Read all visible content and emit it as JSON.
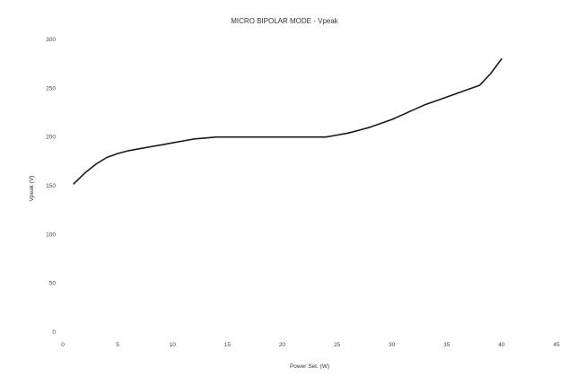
{
  "chart_data": {
    "type": "line",
    "title": "MICRO BIPOLAR MODE - Vpeak",
    "xlabel": "Power Set. (W)",
    "ylabel": "Vpeak (V)",
    "xlim": [
      0,
      45
    ],
    "ylim": [
      0,
      300
    ],
    "xticks": [
      0,
      5,
      10,
      15,
      20,
      25,
      30,
      35,
      40,
      45
    ],
    "yticks": [
      0,
      50,
      100,
      150,
      200,
      250,
      300
    ],
    "grid": false,
    "legend": "none",
    "series": [
      {
        "color": "#1a1a1a",
        "x": [
          1,
          2,
          3,
          4,
          5,
          6,
          7,
          8,
          9,
          10,
          11,
          12,
          13,
          14,
          15,
          16,
          17,
          18,
          19,
          20,
          21,
          22,
          23,
          24,
          25,
          26,
          27,
          28,
          29,
          30,
          31,
          32,
          33,
          34,
          35,
          36,
          37,
          38,
          39,
          40
        ],
        "y": [
          152,
          163,
          172,
          179,
          183,
          186,
          188,
          190,
          192,
          194,
          196,
          198,
          199,
          200,
          200,
          200,
          200,
          200,
          200,
          200,
          200,
          200,
          200,
          200,
          202,
          204,
          207,
          210,
          214,
          218,
          223,
          228,
          233,
          237,
          241,
          245,
          249,
          253,
          265,
          280
        ]
      }
    ]
  }
}
